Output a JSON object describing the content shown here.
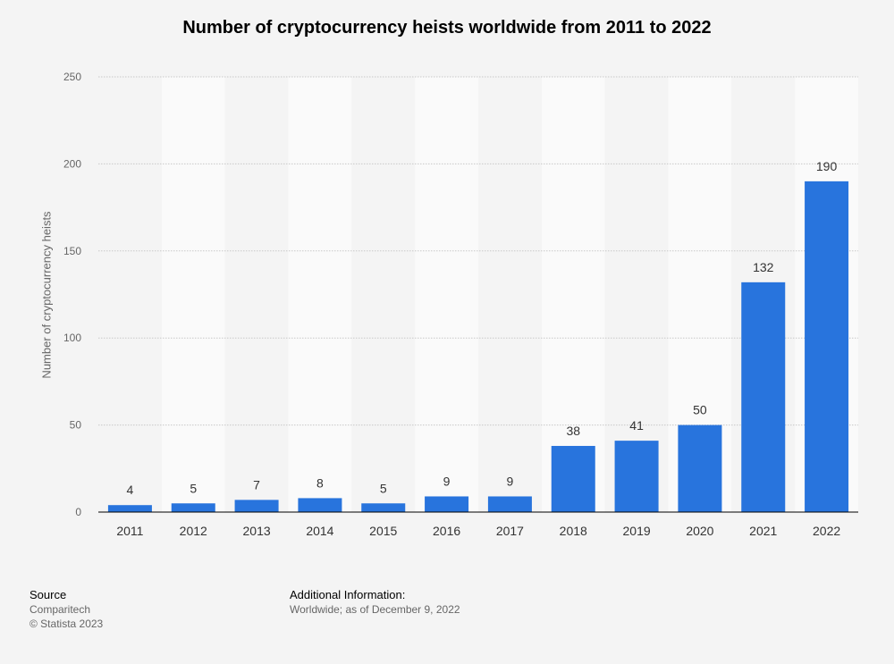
{
  "chart_data": {
    "type": "bar",
    "title": "Number of cryptocurrency heists worldwide from 2011 to 2022",
    "ylabel": "Number of cryptocurrency heists",
    "xlabel": "",
    "categories": [
      "2011",
      "2012",
      "2013",
      "2014",
      "2015",
      "2016",
      "2017",
      "2018",
      "2019",
      "2020",
      "2021",
      "2022"
    ],
    "values": [
      4,
      5,
      7,
      8,
      5,
      9,
      9,
      38,
      41,
      50,
      132,
      190
    ],
    "ylim": [
      0,
      250
    ],
    "yticks": [
      0,
      50,
      100,
      150,
      200,
      250
    ],
    "grid": true,
    "bar_color": "#2874dd"
  },
  "footer": {
    "source_heading": "Source",
    "source_name": "Comparitech",
    "copyright": "© Statista 2023",
    "info_heading": "Additional Information:",
    "info_text": "Worldwide; as of December 9, 2022"
  }
}
